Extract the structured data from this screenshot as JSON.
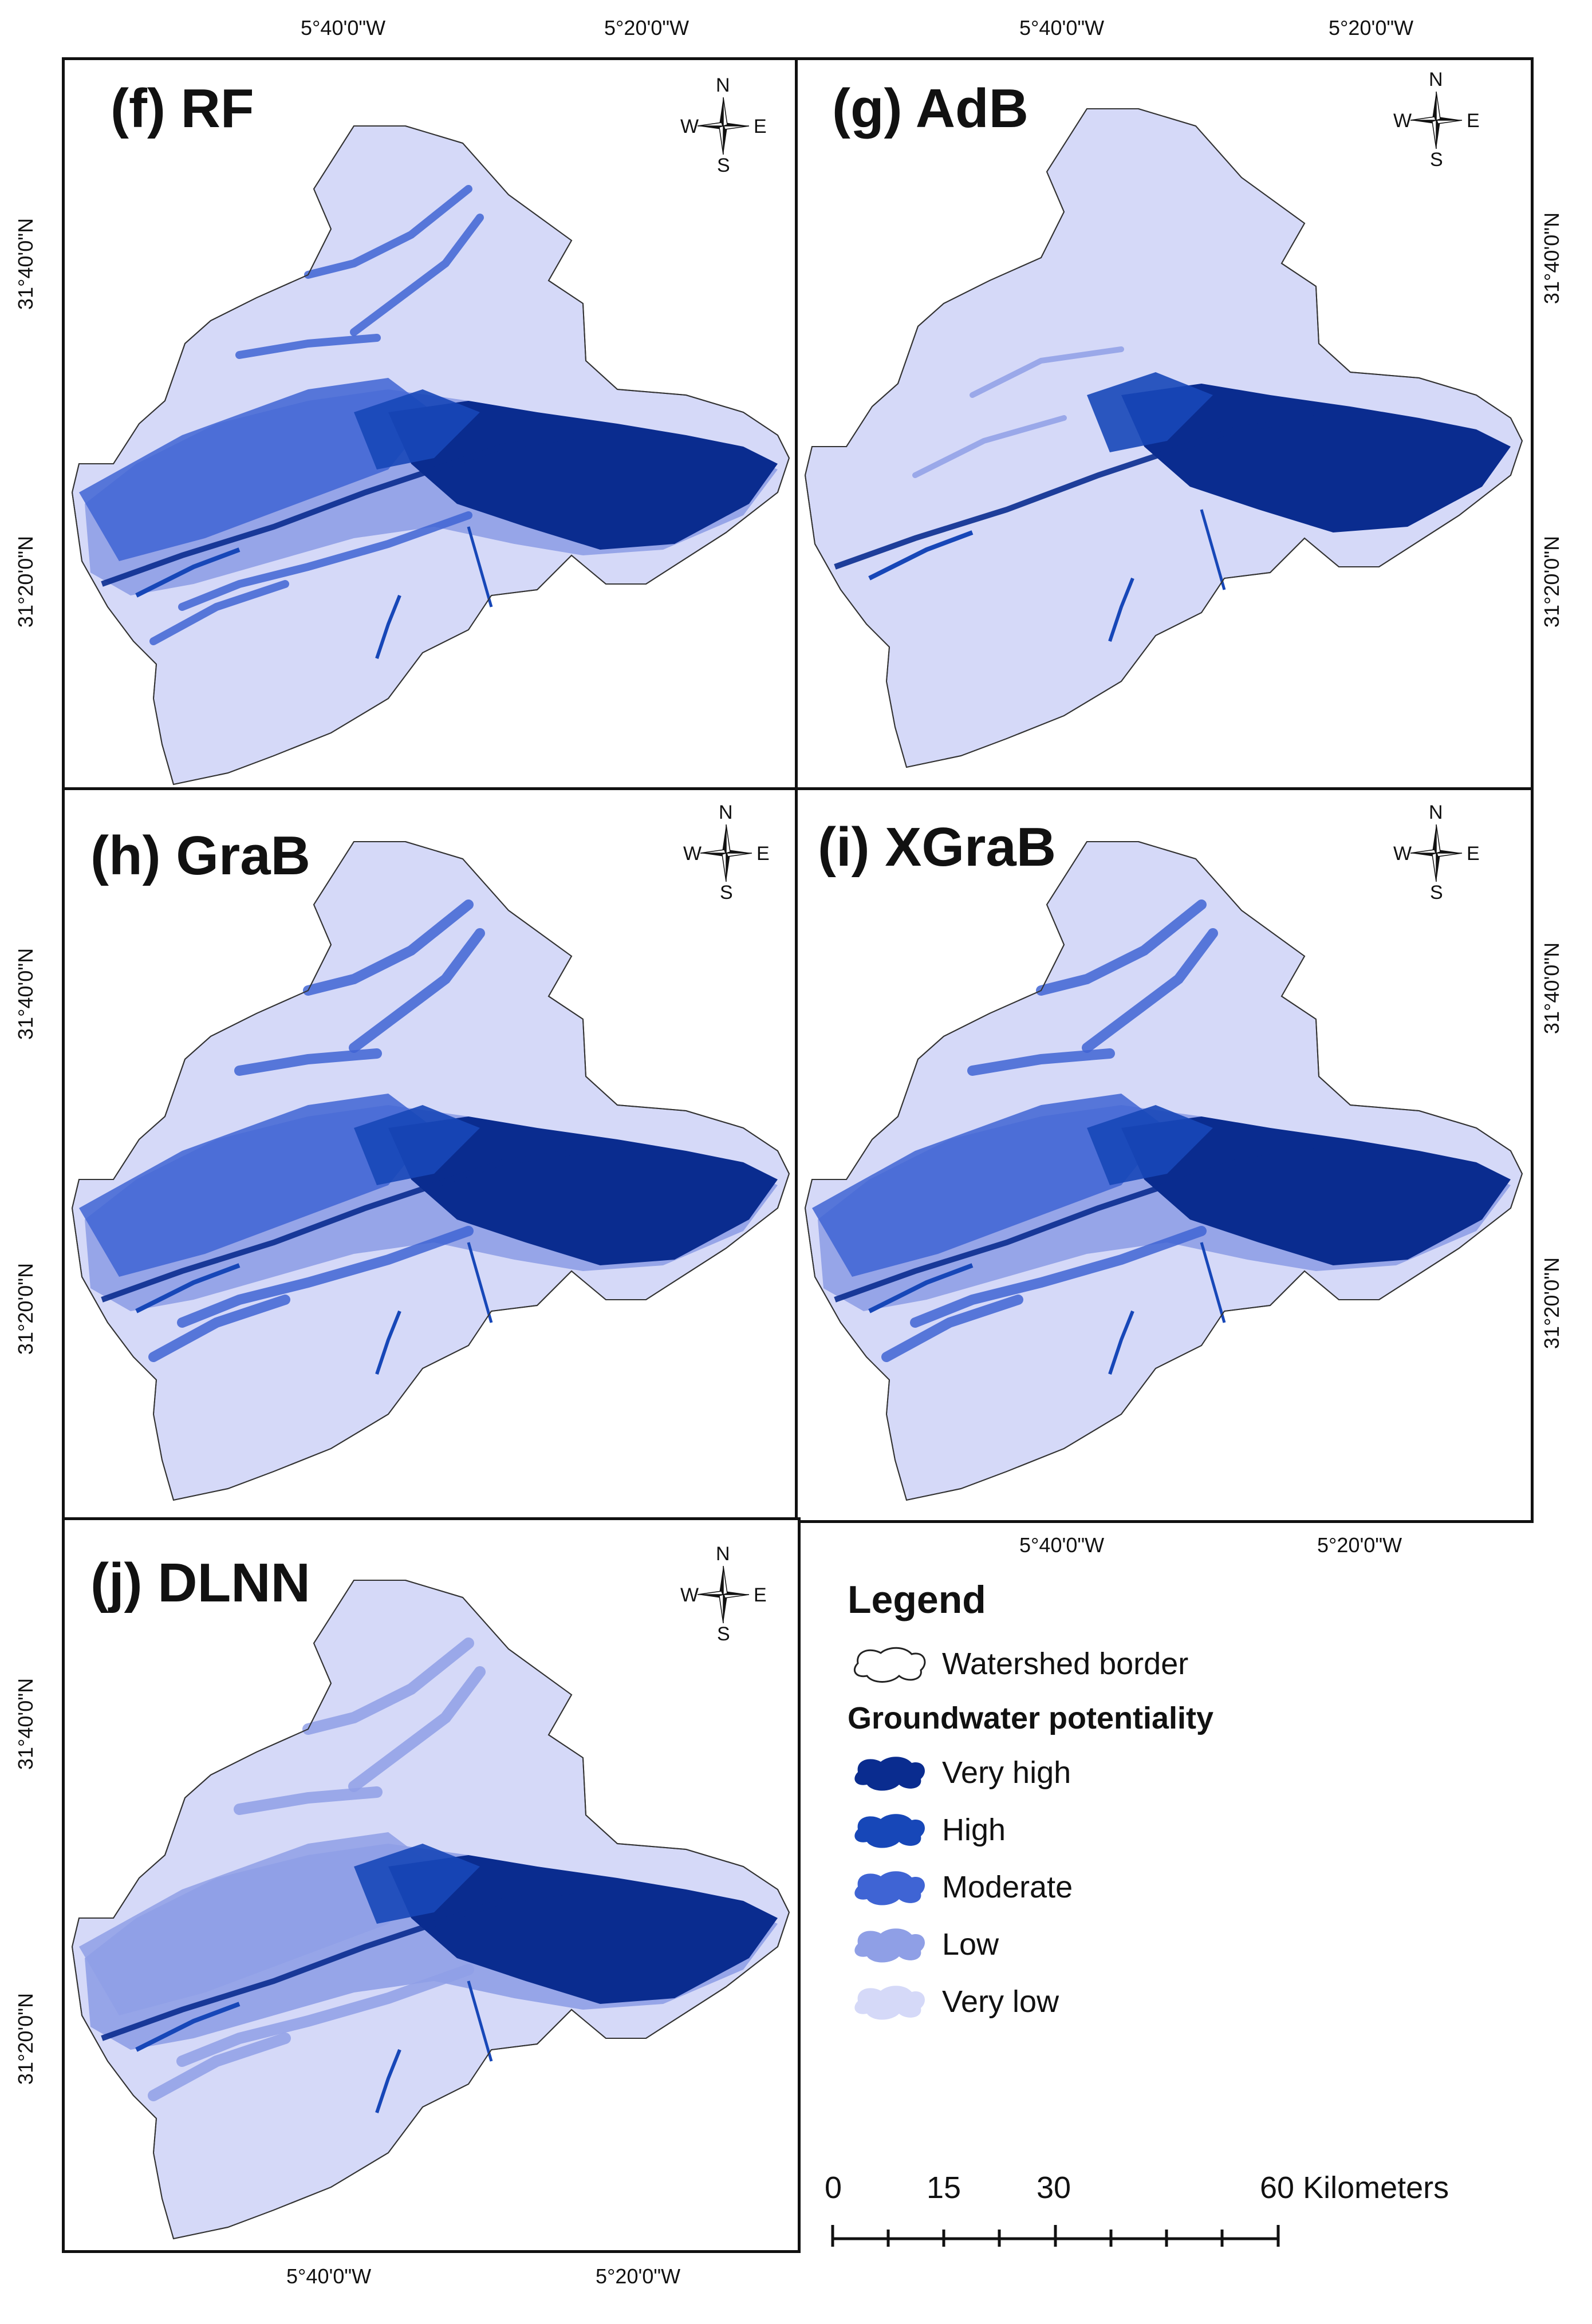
{
  "panels": [
    {
      "id": "f",
      "title": "(f) RF"
    },
    {
      "id": "g",
      "title": "(g) AdB"
    },
    {
      "id": "h",
      "title": "(h) GraB"
    },
    {
      "id": "i",
      "title": "(i) XGraB"
    },
    {
      "id": "j",
      "title": "(j) DLNN"
    }
  ],
  "compass": {
    "n": "N",
    "s": "S",
    "e": "E",
    "w": "W"
  },
  "axes": {
    "lon1": "5°40'0\"W",
    "lon2": "5°20'0\"W",
    "lat1": "31°40'0\"N",
    "lat2": "31°20'0\"N"
  },
  "legend": {
    "title": "Legend",
    "border_label": "Watershed border",
    "group_title": "Groundwater potentiality",
    "classes": [
      {
        "label": "Very high",
        "color": "#0a2c8f"
      },
      {
        "label": "High",
        "color": "#1747b8"
      },
      {
        "label": "Moderate",
        "color": "#3f64d4"
      },
      {
        "label": "Low",
        "color": "#8f9fe6"
      },
      {
        "label": "Very low",
        "color": "#d5d9f8"
      }
    ]
  },
  "scale": {
    "ticks": [
      "0",
      "15",
      "30",
      "60 Kilometers"
    ]
  }
}
